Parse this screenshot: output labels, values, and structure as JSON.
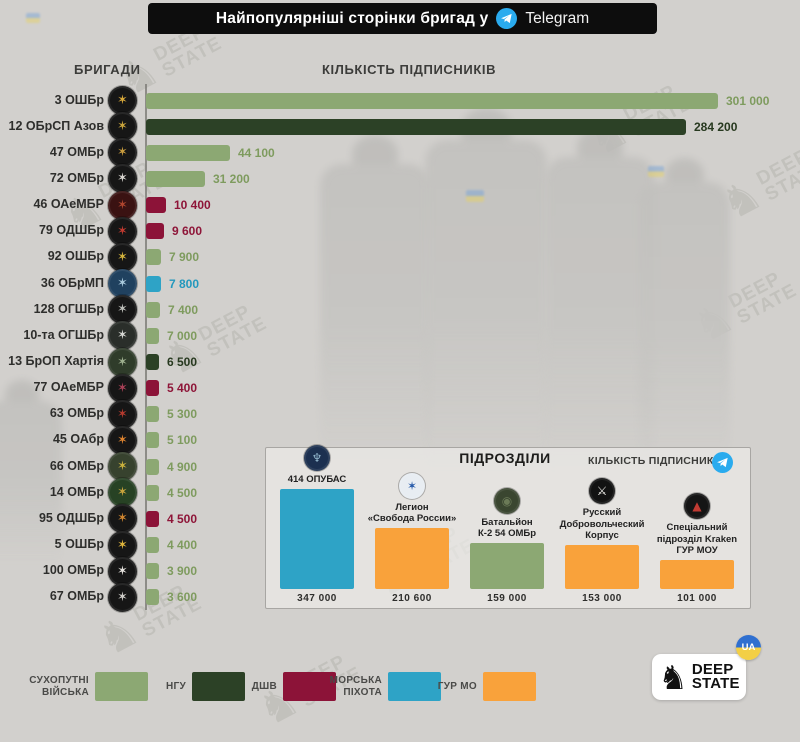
{
  "title": {
    "text": "Найпопулярніші сторінки бригад у",
    "brand": "Telegram",
    "icon": "telegram-icon"
  },
  "headers": {
    "left": "БРИГАДИ",
    "right": "КІЛЬКІСТЬ ПІДПИСНИКІВ"
  },
  "watermark": {
    "text": "DEEP\nSTATE",
    "icon": "chess-knight-icon"
  },
  "logo": {
    "line1": "DEEP",
    "line2": "STATE",
    "badge": "UA",
    "icon": "chess-knight-icon"
  },
  "colors": {
    "background": "#D2D0CD",
    "title_bar": "#0D0D0D",
    "telegram": "#2AABEE",
    "branches": {
      "sukhoputni": {
        "bar": "#8CA873",
        "text": "#7E9B5E"
      },
      "ngu": {
        "bar": "#2C4126",
        "text": "#27391F"
      },
      "dshv": {
        "bar": "#8C1338",
        "text": "#8E1538"
      },
      "marines": {
        "bar": "#2EA3C6",
        "text": "#2398BD"
      },
      "gur": {
        "bar": "#F9A23B",
        "text": "#E8952F"
      }
    }
  },
  "legend": {
    "items": [
      {
        "label": "СУХОПУТНІ\nВІЙСЬКА",
        "branch": "sukhoputni"
      },
      {
        "label": "НГУ",
        "branch": "ngu"
      },
      {
        "label": "ДШВ",
        "branch": "dshv"
      },
      {
        "label": "МОРСЬКА\nПІХОТА",
        "branch": "marines"
      },
      {
        "label": "ГУР МО",
        "branch": "gur"
      }
    ]
  },
  "chart_data": [
    {
      "type": "bar",
      "orientation": "horizontal",
      "title": "Найпопулярніші сторінки бригад у Telegram",
      "xlabel": "КІЛЬКІСТЬ ПІДПИСНИКІВ",
      "ylabel": "БРИГАДИ",
      "xlim": [
        0,
        301000
      ],
      "grid": false,
      "rows": [
        {
          "label": "3 ОШБр",
          "value": 301000,
          "value_label": "301 000",
          "branch": "sukhoputni",
          "badge_bg": "#161616",
          "badge_accent": "#D9A93A"
        },
        {
          "label": "12 ОБрСП Азов",
          "value": 284200,
          "value_label": "284 200",
          "branch": "ngu",
          "badge_bg": "#161616",
          "badge_accent": "#C9A43C"
        },
        {
          "label": "47 ОМБр",
          "value": 44100,
          "value_label": "44 100",
          "branch": "sukhoputni",
          "badge_bg": "#161616",
          "badge_accent": "#C99C3E"
        },
        {
          "label": "72 ОМБр",
          "value": 31200,
          "value_label": "31 200",
          "branch": "sukhoputni",
          "badge_bg": "#161616",
          "badge_accent": "#D8D5D0"
        },
        {
          "label": "46 ОАеМБР",
          "value": 10400,
          "value_label": "10 400",
          "branch": "dshv",
          "badge_bg": "#3A1212",
          "badge_accent": "#B0452E"
        },
        {
          "label": "79 ОДШБр",
          "value": 9600,
          "value_label": "9 600",
          "branch": "dshv",
          "badge_bg": "#161616",
          "badge_accent": "#C03A30"
        },
        {
          "label": "92 ОШБр",
          "value": 7900,
          "value_label": "7 900",
          "branch": "sukhoputni",
          "badge_bg": "#161616",
          "badge_accent": "#D2B23C"
        },
        {
          "label": "36 ОБрМП",
          "value": 7800,
          "value_label": "7 800",
          "branch": "marines",
          "badge_bg": "#20415F",
          "badge_accent": "#A9C9DC"
        },
        {
          "label": "128 ОГШБр",
          "value": 7400,
          "value_label": "7 400",
          "branch": "sukhoputni",
          "badge_bg": "#161616",
          "badge_accent": "#BDBEB9"
        },
        {
          "label": "10-та ОГШБр",
          "value": 7000,
          "value_label": "7 000",
          "branch": "sukhoputni",
          "badge_bg": "#2A2E2A",
          "badge_accent": "#D5D6D2"
        },
        {
          "label": "13 БрОП Хартія",
          "value": 6500,
          "value_label": "6 500",
          "branch": "ngu",
          "badge_bg": "#2F3C2A",
          "badge_accent": "#9DAF8E"
        },
        {
          "label": "77 ОАеМБР",
          "value": 5400,
          "value_label": "5 400",
          "branch": "dshv",
          "badge_bg": "#161616",
          "badge_accent": "#A84056"
        },
        {
          "label": "63 ОМБр",
          "value": 5300,
          "value_label": "5 300",
          "branch": "sukhoputni",
          "badge_bg": "#161616",
          "badge_accent": "#B43A2E"
        },
        {
          "label": "45 ОАбр",
          "value": 5100,
          "value_label": "5 100",
          "branch": "sukhoputni",
          "badge_bg": "#161616",
          "badge_accent": "#DE8430"
        },
        {
          "label": "66 ОМБр",
          "value": 4900,
          "value_label": "4 900",
          "branch": "sukhoputni",
          "badge_bg": "#37422E",
          "badge_accent": "#CBB23D"
        },
        {
          "label": "14 ОМБр",
          "value": 4500,
          "value_label": "4 500",
          "branch": "sukhoputni",
          "badge_bg": "#274224",
          "badge_accent": "#C9A43C"
        },
        {
          "label": "95 ОДШБр",
          "value": 4500,
          "value_label": "4 500",
          "branch": "dshv",
          "badge_bg": "#161616",
          "badge_accent": "#D0862F"
        },
        {
          "label": "5 ОШБр",
          "value": 4400,
          "value_label": "4 400",
          "branch": "sukhoputni",
          "badge_bg": "#161616",
          "badge_accent": "#DFB53C"
        },
        {
          "label": "100 ОМБр",
          "value": 3900,
          "value_label": "3 900",
          "branch": "sukhoputni",
          "badge_bg": "#161616",
          "badge_accent": "#E6E3DE"
        },
        {
          "label": "67 ОМБр",
          "value": 3600,
          "value_label": "3 600",
          "branch": "sukhoputni",
          "badge_bg": "#161616",
          "badge_accent": "#CFCDC8"
        }
      ]
    },
    {
      "type": "bar",
      "orientation": "vertical",
      "title": "ПІДРОЗДІЛИ",
      "subtitle": "КІЛЬКІСТЬ ПІДПИСНИКІВ",
      "ylim": [
        0,
        347000
      ],
      "grid": false,
      "rows": [
        {
          "label": "414 ОПУБАС",
          "value": 347000,
          "value_label": "347 000",
          "branch": "marines",
          "badge_bg": "#1C3050",
          "badge_accent": "#8FB3C9",
          "badge_glyph": "♆"
        },
        {
          "label": "Легион\n«Свобода России»",
          "value": 210600,
          "value_label": "210 600",
          "branch": "gur",
          "badge_bg": "#E8EDF2",
          "badge_accent": "#2458A8",
          "badge_glyph": "✶"
        },
        {
          "label": "Батальйон\nК-2 54 ОМБр",
          "value": 159000,
          "value_label": "159 000",
          "branch": "sukhoputni",
          "badge_bg": "#3A4630",
          "badge_accent": "#6B7A57",
          "badge_glyph": "◉"
        },
        {
          "label": "Русский\nДобровольческий\nКорпус",
          "value": 153000,
          "value_label": "153 000",
          "branch": "gur",
          "badge_bg": "#121212",
          "badge_accent": "#E9E7E3",
          "badge_glyph": "⚔"
        },
        {
          "label": "Спеціальний\nпідрозділ Kraken\nГУР МОУ",
          "value": 101000,
          "value_label": "101 000",
          "branch": "gur",
          "badge_bg": "#151515",
          "badge_accent": "#C23B33",
          "badge_glyph": "▲"
        }
      ]
    }
  ]
}
